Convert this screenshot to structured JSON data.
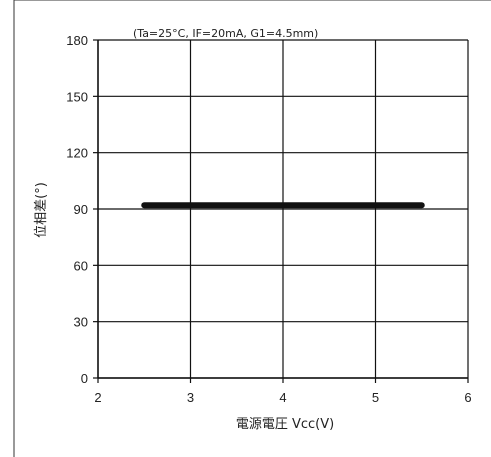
{
  "chart_data": {
    "type": "line",
    "annotation": "(Ta=25°C, IF=20mA, G1=4.5mm)",
    "xlabel": "電源電圧 Vcc(V)",
    "ylabel": "位相差(°)",
    "xlim": [
      2,
      6
    ],
    "ylim": [
      0,
      180
    ],
    "x_ticks": [
      2,
      3,
      4,
      5,
      6
    ],
    "y_ticks": [
      0,
      30,
      60,
      90,
      120,
      150,
      180
    ],
    "grid": true,
    "series": [
      {
        "x": [
          2.5,
          5.5
        ],
        "y": [
          92,
          92
        ],
        "color": "#111111"
      }
    ]
  }
}
